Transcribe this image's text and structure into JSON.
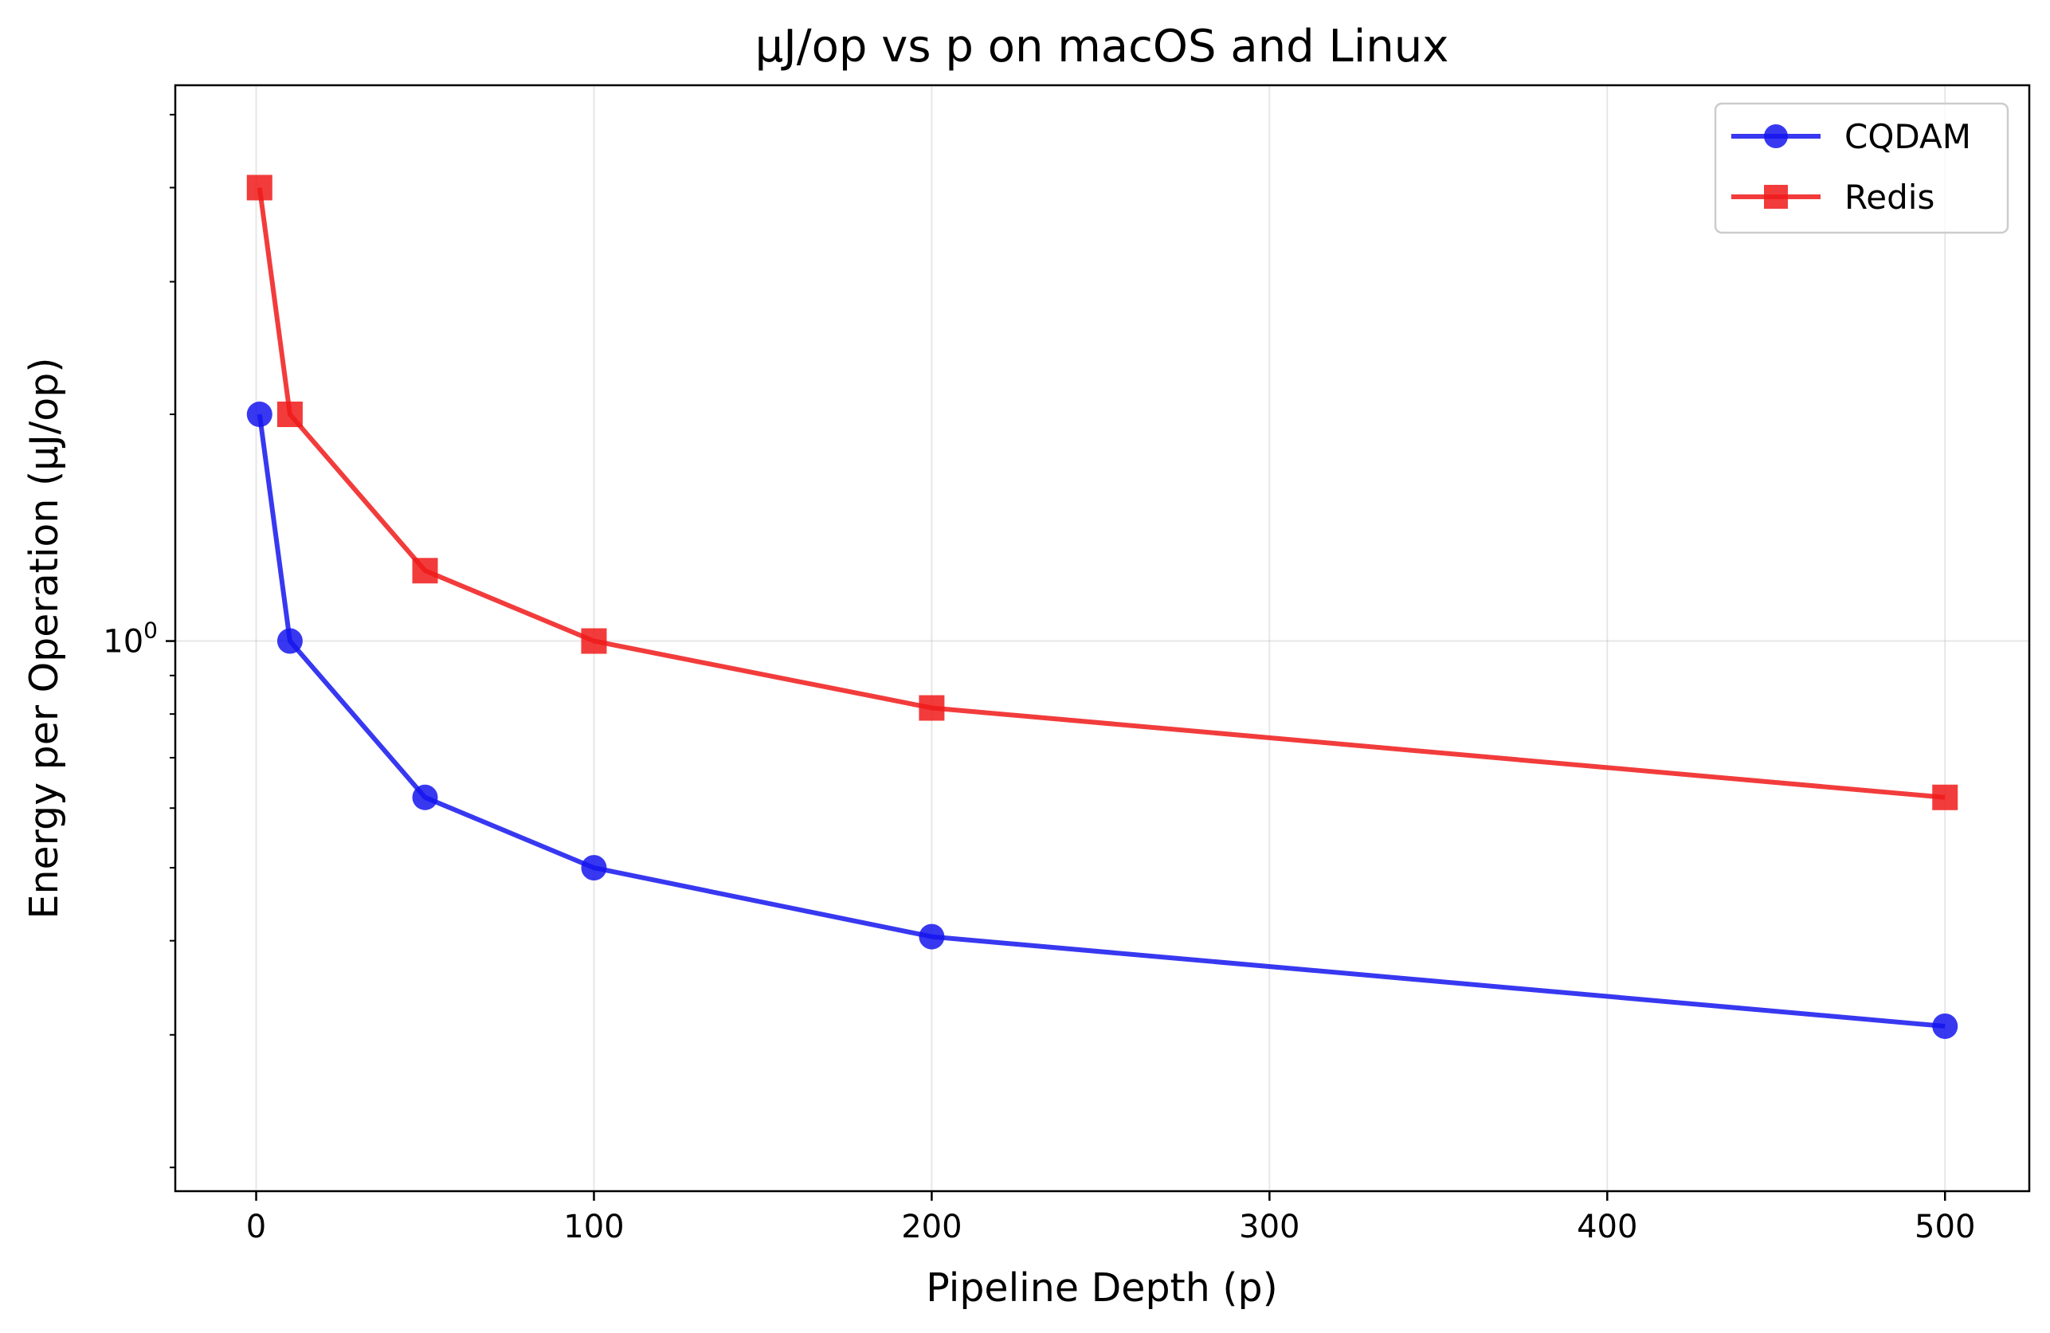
{
  "chart_data": {
    "type": "line",
    "title": "μJ/op vs p on macOS and Linux",
    "xlabel": "Pipeline Depth (p)",
    "ylabel": "Energy per Operation (μJ/op)",
    "x": [
      1,
      10,
      50,
      100,
      200,
      500
    ],
    "xlim": [
      -23.95,
      524.95
    ],
    "ylim": [
      0.186,
      5.47
    ],
    "yscale": "log",
    "grid": true,
    "legend_position": "top-right",
    "x_ticks": [
      {
        "value": 0,
        "label": "0"
      },
      {
        "value": 100,
        "label": "100"
      },
      {
        "value": 200,
        "label": "200"
      },
      {
        "value": 300,
        "label": "300"
      },
      {
        "value": 400,
        "label": "400"
      },
      {
        "value": 500,
        "label": "500"
      }
    ],
    "y_ticks": [
      {
        "value": 1,
        "label": "10",
        "exponent": "0"
      }
    ],
    "y_minor_ticks": [
      0.2,
      0.3,
      0.4,
      0.5,
      0.6,
      0.7,
      0.8,
      0.9,
      2,
      3,
      4,
      5
    ],
    "series": [
      {
        "name": "CQDAM",
        "values": [
          2.0,
          1.0,
          0.62,
          0.5,
          0.405,
          0.308
        ],
        "color": "#1515ee",
        "marker": "circle"
      },
      {
        "name": "Redis",
        "values": [
          4.0,
          2.0,
          1.24,
          1.0,
          0.815,
          0.62
        ],
        "color": "#f01a1a",
        "marker": "square"
      }
    ]
  }
}
